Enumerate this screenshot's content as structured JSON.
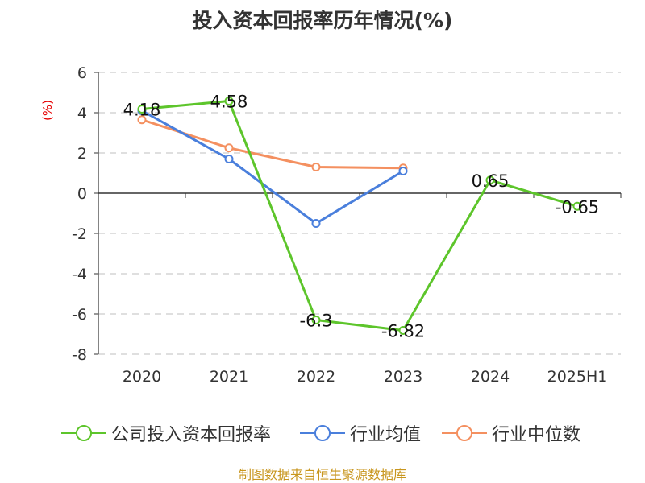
{
  "title": "投入资本回报率历年情况(%)",
  "ylabel": "(%)",
  "source": "制图数据来自恒生聚源数据库",
  "chart_data": {
    "type": "line",
    "categories": [
      "2020",
      "2021",
      "2022",
      "2023",
      "2024",
      "2025H1"
    ],
    "ylim": [
      -8,
      6
    ],
    "yticks": [
      6,
      4,
      2,
      0,
      -2,
      -4,
      -6,
      -8
    ],
    "grid": true,
    "legend_position": "bottom",
    "series": [
      {
        "name": "公司投入资本回报率",
        "color": "#5dc52b",
        "values": [
          4.18,
          4.58,
          -6.3,
          -6.82,
          0.65,
          -0.65
        ],
        "labels": [
          "4.18",
          "4.58",
          "-6.3",
          "-6.82",
          "0.65",
          "-0.65"
        ]
      },
      {
        "name": "行业均值",
        "color": "#4a7fdc",
        "values": [
          4.1,
          1.7,
          -1.5,
          1.1,
          null,
          null
        ]
      },
      {
        "name": "行业中位数",
        "color": "#f49060",
        "values": [
          3.65,
          2.25,
          1.3,
          1.25,
          null,
          null
        ]
      }
    ]
  }
}
